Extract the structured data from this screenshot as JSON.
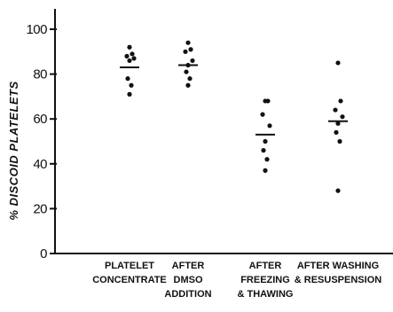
{
  "chart_data": {
    "type": "scatter",
    "title": "",
    "xlabel": "",
    "ylabel": "% DISCOID PLATELETS",
    "ylim": [
      0,
      100
    ],
    "yticks": [
      0,
      20,
      40,
      60,
      80,
      100
    ],
    "ytick_labels": [
      "0",
      "20",
      "40",
      "60",
      "80",
      "100"
    ],
    "grid": false,
    "legend": "none",
    "colors": {
      "marker": "#111111",
      "axis": "#111111",
      "background": "#ffffff"
    },
    "categories": [
      [
        "PLATELET",
        "CONCENTRATE"
      ],
      [
        "AFTER",
        "DMSO",
        "ADDITION"
      ],
      [
        "AFTER",
        "FREEZING",
        "& THAWING"
      ],
      [
        "AFTER WASHING",
        "& RESUSPENSION"
      ]
    ],
    "series": [
      {
        "values": [
          92,
          89,
          88,
          87,
          86,
          78,
          75,
          71
        ]
      },
      {
        "values": [
          94,
          91,
          90,
          86,
          84,
          81,
          78,
          75
        ]
      },
      {
        "values": [
          68,
          68,
          62,
          57,
          50,
          46,
          42,
          37
        ]
      },
      {
        "values": [
          85,
          68,
          64,
          61,
          58,
          54,
          50,
          28
        ]
      }
    ],
    "means": [
      83,
      84,
      53,
      59
    ]
  }
}
